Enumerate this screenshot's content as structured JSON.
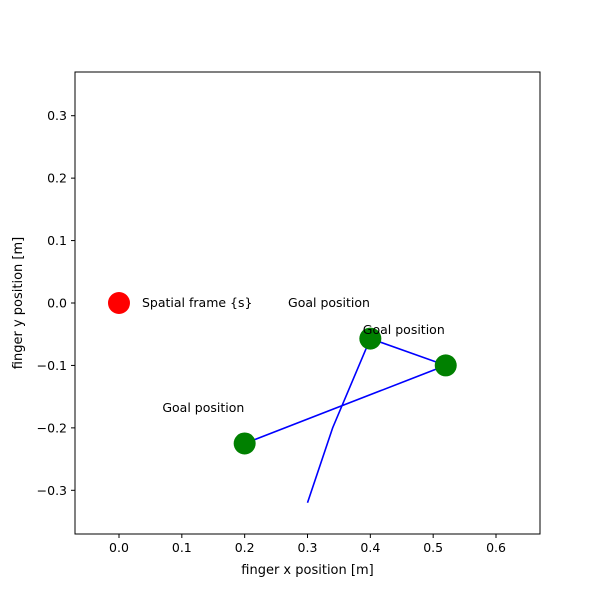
{
  "chart_data": {
    "type": "scatter",
    "xlabel": "finger x position [m]",
    "ylabel": "finger y position [m]",
    "xlim": [
      -0.07,
      0.67
    ],
    "ylim": [
      -0.37,
      0.37
    ],
    "xticks": [
      "0.0",
      "0.1",
      "0.2",
      "0.3",
      "0.4",
      "0.5",
      "0.6"
    ],
    "yticks": [
      "-0.3",
      "-0.2",
      "-0.1",
      "0.0",
      "0.1",
      "0.2",
      "0.3"
    ],
    "grid": false,
    "origin": {
      "x": 0.0,
      "y": 0.0,
      "color": "#ff0000",
      "label": "Spatial frame {s}"
    },
    "goals": {
      "color": "#008000",
      "points": [
        {
          "x": 0.4,
          "y": -0.057
        },
        {
          "x": 0.52,
          "y": -0.1
        },
        {
          "x": 0.2,
          "y": -0.225
        }
      ]
    },
    "annotations": [
      {
        "text": "Goal position",
        "x": 0.269,
        "y": -0.0
      },
      {
        "text": "Goal position",
        "x": 0.388,
        "y": -0.043
      },
      {
        "text": "Goal position",
        "x": 0.069,
        "y": -0.168
      }
    ],
    "trajectory": {
      "color": "#0000ff",
      "points": [
        {
          "x": 0.3,
          "y": -0.32
        },
        {
          "x": 0.34,
          "y": -0.2
        },
        {
          "x": 0.4,
          "y": -0.057
        },
        {
          "x": 0.52,
          "y": -0.1
        },
        {
          "x": 0.2,
          "y": -0.225
        }
      ]
    }
  }
}
